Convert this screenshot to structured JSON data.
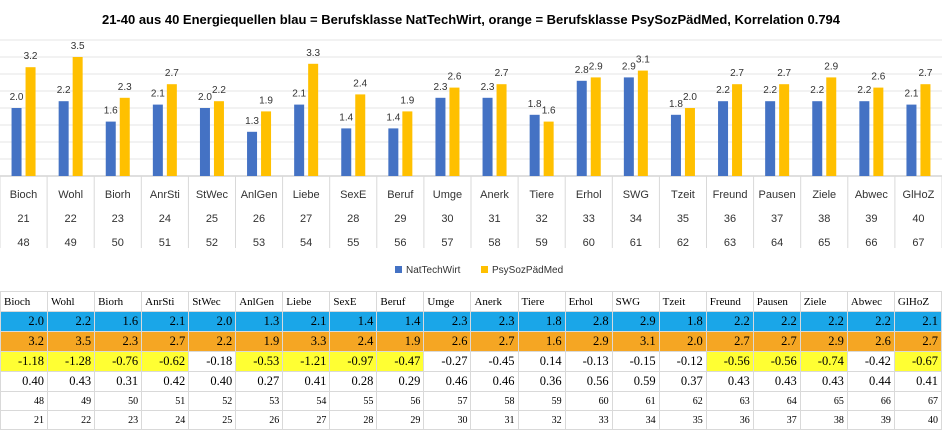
{
  "title": "21-40 aus 40 Energiequellen blau = Berufsklasse NatTechWirt, orange = Berufsklasse PsySozPädMed, Korrelation 0.794",
  "colors": {
    "blue": "#4472c4",
    "orange": "#ffc000",
    "row_blue": "#1aa6e8",
    "row_orange": "#f5a623",
    "highlight": "#ffff33"
  },
  "chart_data": {
    "type": "bar",
    "categories": [
      "Bioch",
      "Wohl",
      "Biorh",
      "AnrSti",
      "StWec",
      "AnlGen",
      "Liebe",
      "SexE",
      "Beruf",
      "Umge",
      "Anerk",
      "Tiere",
      "Erhol",
      "SWG",
      "Tzeit",
      "Freund",
      "Pausen",
      "Ziele",
      "Abwec",
      "GlHoZ"
    ],
    "category_numbers": [
      "21",
      "22",
      "23",
      "24",
      "25",
      "26",
      "27",
      "28",
      "29",
      "30",
      "31",
      "32",
      "33",
      "34",
      "35",
      "36",
      "37",
      "38",
      "39",
      "40"
    ],
    "category_ids": [
      "48",
      "49",
      "50",
      "51",
      "52",
      "53",
      "54",
      "55",
      "56",
      "57",
      "58",
      "59",
      "60",
      "61",
      "62",
      "63",
      "64",
      "65",
      "66",
      "67"
    ],
    "series": [
      {
        "name": "NatTechWirt",
        "values": [
          2.0,
          2.2,
          1.6,
          2.1,
          2.0,
          1.3,
          2.1,
          1.4,
          1.4,
          2.3,
          2.3,
          1.8,
          2.8,
          2.9,
          1.8,
          2.2,
          2.2,
          2.2,
          2.2,
          2.1
        ]
      },
      {
        "name": "PsySozPädMed",
        "values": [
          3.2,
          3.5,
          2.3,
          2.7,
          2.2,
          1.9,
          3.3,
          2.4,
          1.9,
          2.6,
          2.7,
          1.6,
          2.9,
          3.1,
          2.0,
          2.7,
          2.7,
          2.9,
          2.6,
          2.7
        ]
      }
    ],
    "value_labels_blue": [
      "2.0",
      "2.2",
      "1.6",
      "2.1",
      "2.0",
      "1.3",
      "2.1",
      "1.4",
      "1.4",
      "2.3",
      "2.3",
      "1.8",
      "2.8",
      "2.9",
      "1.8",
      "2.2",
      "2.2",
      "2.2",
      "2.2",
      "2.1"
    ],
    "value_labels_orange": [
      "3.2",
      "3.5",
      "2.3",
      "2.7",
      "2.2",
      "1.9",
      "3.3",
      "2.4",
      "1.9",
      "2.6",
      "2.7",
      "1.6",
      "2.9",
      "3.1",
      "2.0",
      "2.7",
      "2.7",
      "2.9",
      "2.6",
      "2.7"
    ],
    "ylim": [
      0,
      4
    ],
    "grid": true,
    "legend": "bottom"
  },
  "table": {
    "headers": [
      "Bioch",
      "Wohl",
      "Biorh",
      "AnrSti",
      "StWec",
      "AnlGen",
      "Liebe",
      "SexE",
      "Beruf",
      "Umge",
      "Anerk",
      "Tiere",
      "Erhol",
      "SWG",
      "Tzeit",
      "Freund",
      "Pausen",
      "Ziele",
      "Abwec",
      "GlHoZ"
    ],
    "blue_row": [
      "2.0",
      "2.2",
      "1.6",
      "2.1",
      "2.0",
      "1.3",
      "2.1",
      "1.4",
      "1.4",
      "2.3",
      "2.3",
      "1.8",
      "2.8",
      "2.9",
      "1.8",
      "2.2",
      "2.2",
      "2.2",
      "2.2",
      "2.1"
    ],
    "orange_row": [
      "3.2",
      "3.5",
      "2.3",
      "2.7",
      "2.2",
      "1.9",
      "3.3",
      "2.4",
      "1.9",
      "2.6",
      "2.7",
      "1.6",
      "2.9",
      "3.1",
      "2.0",
      "2.7",
      "2.7",
      "2.9",
      "2.6",
      "2.7"
    ],
    "diff_row": [
      "-1.18",
      "-1.28",
      "-0.76",
      "-0.62",
      "-0.18",
      "-0.53",
      "-1.21",
      "-0.97",
      "-0.47",
      "-0.27",
      "-0.45",
      "0.14",
      "-0.13",
      "-0.15",
      "-0.12",
      "-0.56",
      "-0.56",
      "-0.74",
      "-0.42",
      "-0.67"
    ],
    "diff_highlight": [
      true,
      true,
      true,
      true,
      false,
      true,
      true,
      true,
      true,
      false,
      false,
      false,
      false,
      false,
      false,
      true,
      true,
      true,
      false,
      true
    ],
    "corr_row": [
      "0.40",
      "0.43",
      "0.31",
      "0.42",
      "0.40",
      "0.27",
      "0.41",
      "0.28",
      "0.29",
      "0.46",
      "0.46",
      "0.36",
      "0.56",
      "0.59",
      "0.37",
      "0.43",
      "0.43",
      "0.43",
      "0.44",
      "0.41"
    ],
    "id_row": [
      "48",
      "49",
      "50",
      "51",
      "52",
      "53",
      "54",
      "55",
      "56",
      "57",
      "58",
      "59",
      "60",
      "61",
      "62",
      "63",
      "64",
      "65",
      "66",
      "67"
    ],
    "num_row": [
      "21",
      "22",
      "23",
      "24",
      "25",
      "26",
      "27",
      "28",
      "29",
      "30",
      "31",
      "32",
      "33",
      "34",
      "35",
      "36",
      "37",
      "38",
      "39",
      "40"
    ]
  }
}
